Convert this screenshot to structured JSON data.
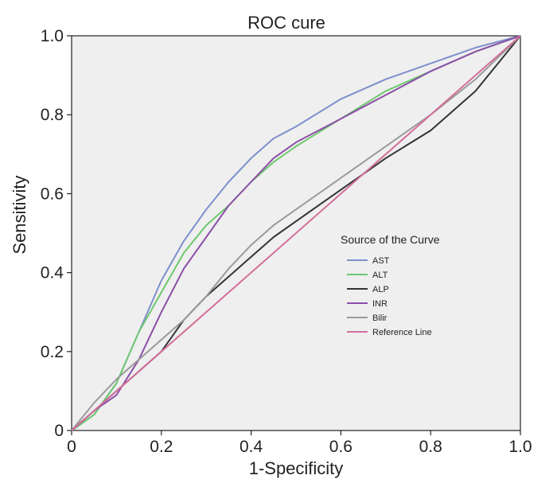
{
  "chart_data": {
    "type": "line",
    "title": "ROC cure",
    "xlabel": "1-Specificity",
    "ylabel": "Sensitivity",
    "xlim": [
      0,
      1
    ],
    "ylim": [
      0,
      1
    ],
    "xticks": [
      "0",
      "0.2",
      "0.4",
      "0.6",
      "0.8",
      "1.0"
    ],
    "yticks": [
      "0",
      "0.2",
      "0.4",
      "0.6",
      "0.8",
      "1.0"
    ],
    "grid": false,
    "plot_background": "#efefef",
    "legend": {
      "title": "Source of the Curve",
      "position": "right-center"
    },
    "series": [
      {
        "name": "AST",
        "color": "#7f8fcc",
        "x": [
          0,
          0.05,
          0.1,
          0.15,
          0.2,
          0.25,
          0.3,
          0.35,
          0.4,
          0.45,
          0.5,
          0.6,
          0.7,
          0.8,
          0.9,
          1.0
        ],
        "y": [
          0,
          0.04,
          0.12,
          0.25,
          0.38,
          0.48,
          0.56,
          0.63,
          0.69,
          0.74,
          0.77,
          0.84,
          0.89,
          0.93,
          0.97,
          1.0
        ]
      },
      {
        "name": "ALT",
        "color": "#6ec86e",
        "x": [
          0,
          0.05,
          0.1,
          0.15,
          0.2,
          0.25,
          0.3,
          0.35,
          0.4,
          0.45,
          0.5,
          0.6,
          0.7,
          0.8,
          0.9,
          1.0
        ],
        "y": [
          0,
          0.04,
          0.12,
          0.25,
          0.35,
          0.45,
          0.52,
          0.57,
          0.63,
          0.68,
          0.72,
          0.79,
          0.86,
          0.91,
          0.96,
          1.0
        ]
      },
      {
        "name": "ALP",
        "color": "#333333",
        "x": [
          0,
          0.05,
          0.1,
          0.15,
          0.2,
          0.25,
          0.3,
          0.35,
          0.4,
          0.45,
          0.5,
          0.6,
          0.7,
          0.8,
          0.9,
          1.0
        ],
        "y": [
          0,
          0.05,
          0.1,
          0.15,
          0.2,
          0.28,
          0.34,
          0.39,
          0.44,
          0.49,
          0.53,
          0.61,
          0.69,
          0.76,
          0.86,
          1.0
        ]
      },
      {
        "name": "INR",
        "color": "#8b4fa8",
        "x": [
          0,
          0.05,
          0.1,
          0.15,
          0.2,
          0.25,
          0.3,
          0.35,
          0.4,
          0.45,
          0.5,
          0.6,
          0.7,
          0.8,
          0.9,
          1.0
        ],
        "y": [
          0,
          0.05,
          0.09,
          0.18,
          0.3,
          0.41,
          0.49,
          0.57,
          0.63,
          0.69,
          0.73,
          0.79,
          0.85,
          0.91,
          0.96,
          1.0
        ]
      },
      {
        "name": "Bilir",
        "color": "#9a9a9a",
        "x": [
          0,
          0.05,
          0.1,
          0.15,
          0.2,
          0.25,
          0.3,
          0.35,
          0.4,
          0.45,
          0.5,
          0.6,
          0.7,
          0.8,
          0.9,
          1.0
        ],
        "y": [
          0,
          0.07,
          0.13,
          0.18,
          0.23,
          0.28,
          0.34,
          0.41,
          0.47,
          0.52,
          0.56,
          0.64,
          0.72,
          0.8,
          0.89,
          1.0
        ]
      },
      {
        "name": "Reference Line",
        "color": "#d36f9a",
        "x": [
          0,
          1.0
        ],
        "y": [
          0,
          1.0
        ]
      }
    ]
  }
}
